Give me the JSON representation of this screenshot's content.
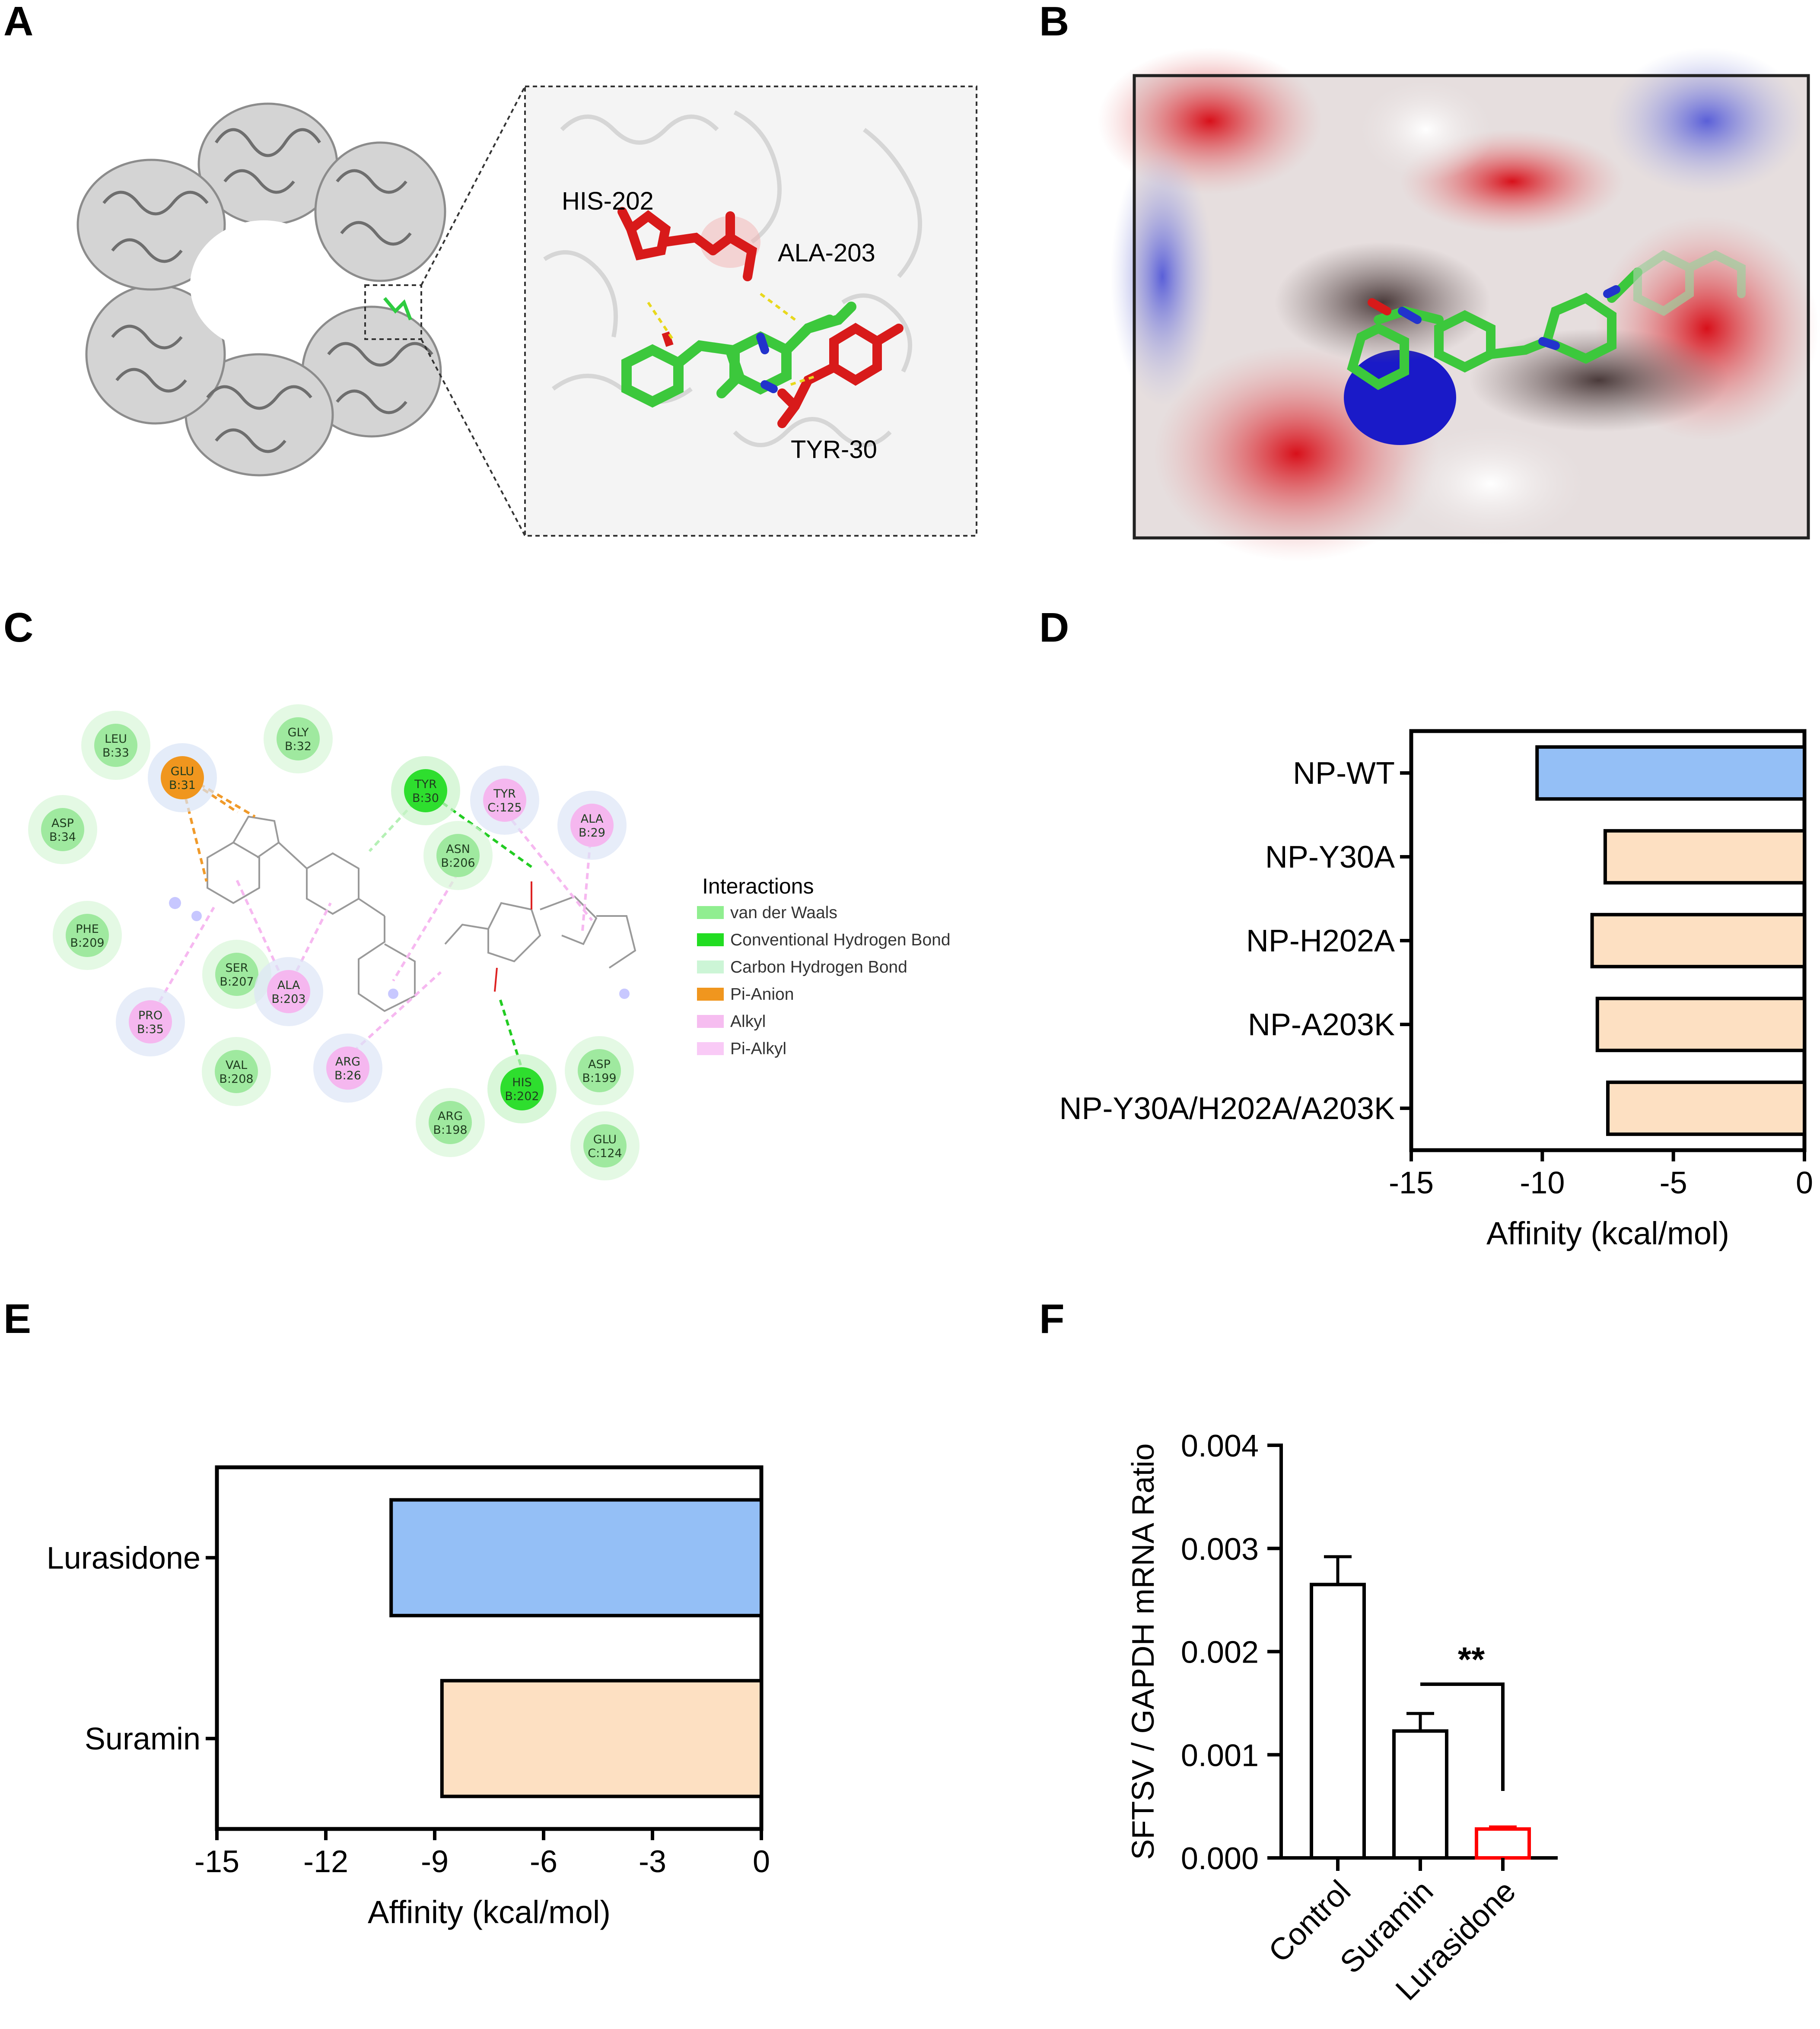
{
  "panels": {
    "A": "A",
    "B": "B",
    "C": "C",
    "D": "D",
    "E": "E",
    "F": "F"
  },
  "panelA": {
    "residues": [
      "HIS-202",
      "ALA-203",
      "TYR-30"
    ]
  },
  "panelC": {
    "legend_title": "Interactions",
    "legend": [
      {
        "label": "van der Waals",
        "color": "#90ee90"
      },
      {
        "label": "Conventional Hydrogen Bond",
        "color": "#22dd22"
      },
      {
        "label": "Carbon Hydrogen Bond",
        "color": "#ccf5d6"
      },
      {
        "label": "Pi-Anion",
        "color": "#f0961e"
      },
      {
        "label": "Alkyl",
        "color": "#f6bdf0"
      },
      {
        "label": "Pi-Alkyl",
        "color": "#f9caf6"
      }
    ],
    "residues": [
      {
        "l1": "LEU",
        "l2": "B:33",
        "kind": "vdw"
      },
      {
        "l1": "GLY",
        "l2": "B:32",
        "kind": "vdw"
      },
      {
        "l1": "GLU",
        "l2": "B:31",
        "kind": "anion"
      },
      {
        "l1": "ASP",
        "l2": "B:34",
        "kind": "vdw"
      },
      {
        "l1": "TYR",
        "l2": "B:30",
        "kind": "hbond"
      },
      {
        "l1": "TYR",
        "l2": "C:125",
        "kind": "alkyl"
      },
      {
        "l1": "ALA",
        "l2": "B:29",
        "kind": "alkyl"
      },
      {
        "l1": "ASN",
        "l2": "B:206",
        "kind": "vdw"
      },
      {
        "l1": "PHE",
        "l2": "B:209",
        "kind": "vdw"
      },
      {
        "l1": "SER",
        "l2": "B:207",
        "kind": "vdw"
      },
      {
        "l1": "ALA",
        "l2": "B:203",
        "kind": "alkyl"
      },
      {
        "l1": "PRO",
        "l2": "B:35",
        "kind": "alkyl"
      },
      {
        "l1": "VAL",
        "l2": "B:208",
        "kind": "vdw"
      },
      {
        "l1": "ARG",
        "l2": "B:26",
        "kind": "alkyl"
      },
      {
        "l1": "HIS",
        "l2": "B:202",
        "kind": "hbond"
      },
      {
        "l1": "ASP",
        "l2": "B:199",
        "kind": "vdw"
      },
      {
        "l1": "ARG",
        "l2": "B:198",
        "kind": "vdw"
      },
      {
        "l1": "GLU",
        "l2": "C:124",
        "kind": "vdw"
      }
    ]
  },
  "chart_data": [
    {
      "panel": "D",
      "type": "bar",
      "orientation": "horizontal",
      "categories": [
        "NP-WT",
        "NP-Y30A",
        "NP-H202A",
        "NP-A203K",
        "NP-Y30A/H202A/A203K"
      ],
      "values": [
        -10.2,
        -7.6,
        -8.1,
        -7.9,
        -7.5
      ],
      "colors": [
        "#94bff6",
        "#fde0c2",
        "#fde0c2",
        "#fde0c2",
        "#fde0c2"
      ],
      "xlabel": "Affinity (kcal/mol)",
      "xlim": [
        -15,
        0
      ],
      "xticks": [
        "-15",
        "-10",
        "-5",
        "0"
      ]
    },
    {
      "panel": "E",
      "type": "bar",
      "orientation": "horizontal",
      "categories": [
        "Lurasidone",
        "Suramin"
      ],
      "values": [
        -10.2,
        -8.8
      ],
      "colors": [
        "#94bff6",
        "#fde0c2"
      ],
      "xlabel": "Affinity (kcal/mol)",
      "xlim": [
        -15,
        0
      ],
      "xticks": [
        "-15",
        "-12",
        "-9",
        "-6",
        "-3",
        "0"
      ]
    },
    {
      "panel": "F",
      "type": "bar",
      "categories": [
        "Control",
        "Suramin",
        "Lurasidone"
      ],
      "values": [
        0.00265,
        0.00123,
        0.00028
      ],
      "errors": [
        0.00027,
        0.00017,
        2e-05
      ],
      "edge_colors": [
        "#000000",
        "#000000",
        "#ff0000"
      ],
      "ylabel": "SFTSV / GAPDH mRNA Ratio",
      "ylim": [
        0,
        0.004
      ],
      "yticks": [
        "0.000",
        "0.001",
        "0.002",
        "0.003",
        "0.004"
      ],
      "significance": "**"
    }
  ]
}
